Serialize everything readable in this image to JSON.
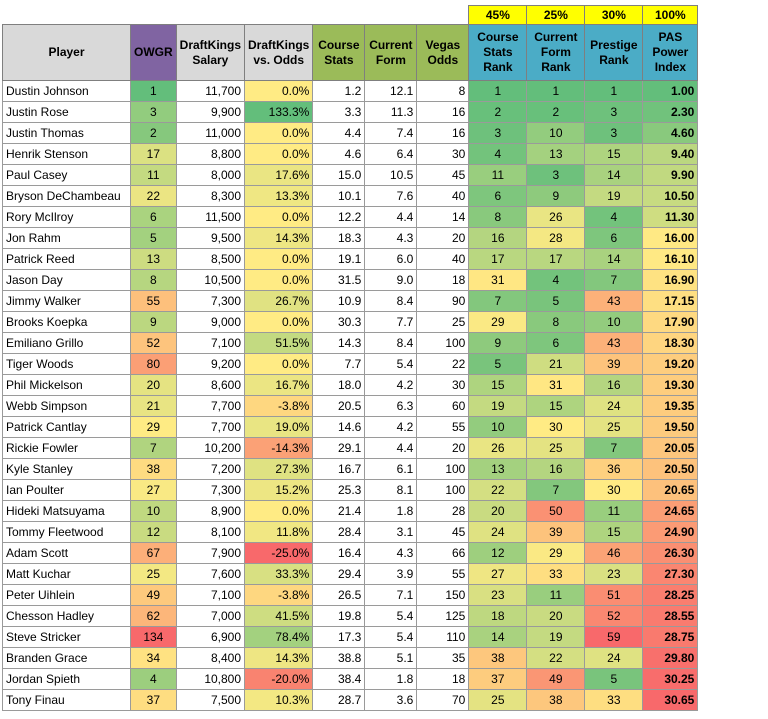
{
  "weights": [
    "45%",
    "25%",
    "30%",
    "100%"
  ],
  "headers": {
    "player": "Player",
    "owgr": "OWGR",
    "salary": "DraftKings Salary",
    "vs_odds": "DraftKings vs. Odds",
    "course_stats": "Course Stats",
    "current_form": "Current Form",
    "vegas_odds": "Vegas Odds",
    "course_rank": "Course Stats Rank",
    "form_rank": "Current Form Rank",
    "prestige_rank": "Prestige Rank",
    "pas": "PAS Power Index"
  },
  "rows": [
    {
      "player": "Dustin Johnson",
      "owgr": "1",
      "salary": "11,700",
      "vs_odds": "0.0%",
      "course_stats": "1.2",
      "current_form": "12.1",
      "vegas_odds": "8",
      "course_rank": "1",
      "form_rank": "1",
      "prestige_rank": "1",
      "pas": "1.00"
    },
    {
      "player": "Justin Rose",
      "owgr": "3",
      "salary": "9,900",
      "vs_odds": "133.3%",
      "course_stats": "3.3",
      "current_form": "11.3",
      "vegas_odds": "16",
      "course_rank": "2",
      "form_rank": "2",
      "prestige_rank": "3",
      "pas": "2.30"
    },
    {
      "player": "Justin Thomas",
      "owgr": "2",
      "salary": "11,000",
      "vs_odds": "0.0%",
      "course_stats": "4.4",
      "current_form": "7.4",
      "vegas_odds": "16",
      "course_rank": "3",
      "form_rank": "10",
      "prestige_rank": "3",
      "pas": "4.60"
    },
    {
      "player": "Henrik Stenson",
      "owgr": "17",
      "salary": "8,800",
      "vs_odds": "0.0%",
      "course_stats": "4.6",
      "current_form": "6.4",
      "vegas_odds": "30",
      "course_rank": "4",
      "form_rank": "13",
      "prestige_rank": "15",
      "pas": "9.40"
    },
    {
      "player": "Paul Casey",
      "owgr": "11",
      "salary": "8,000",
      "vs_odds": "17.6%",
      "course_stats": "15.0",
      "current_form": "10.5",
      "vegas_odds": "45",
      "course_rank": "11",
      "form_rank": "3",
      "prestige_rank": "14",
      "pas": "9.90"
    },
    {
      "player": "Bryson DeChambeau",
      "owgr": "22",
      "salary": "8,300",
      "vs_odds": "13.3%",
      "course_stats": "10.1",
      "current_form": "7.6",
      "vegas_odds": "40",
      "course_rank": "6",
      "form_rank": "9",
      "prestige_rank": "19",
      "pas": "10.50"
    },
    {
      "player": "Rory McIlroy",
      "owgr": "6",
      "salary": "11,500",
      "vs_odds": "0.0%",
      "course_stats": "12.2",
      "current_form": "4.4",
      "vegas_odds": "14",
      "course_rank": "8",
      "form_rank": "26",
      "prestige_rank": "4",
      "pas": "11.30"
    },
    {
      "player": "Jon Rahm",
      "owgr": "5",
      "salary": "9,500",
      "vs_odds": "14.3%",
      "course_stats": "18.3",
      "current_form": "4.3",
      "vegas_odds": "20",
      "course_rank": "16",
      "form_rank": "28",
      "prestige_rank": "6",
      "pas": "16.00"
    },
    {
      "player": "Patrick Reed",
      "owgr": "13",
      "salary": "8,500",
      "vs_odds": "0.0%",
      "course_stats": "19.1",
      "current_form": "6.0",
      "vegas_odds": "40",
      "course_rank": "17",
      "form_rank": "17",
      "prestige_rank": "14",
      "pas": "16.10"
    },
    {
      "player": "Jason Day",
      "owgr": "8",
      "salary": "10,500",
      "vs_odds": "0.0%",
      "course_stats": "31.5",
      "current_form": "9.0",
      "vegas_odds": "18",
      "course_rank": "31",
      "form_rank": "4",
      "prestige_rank": "7",
      "pas": "16.90"
    },
    {
      "player": "Jimmy Walker",
      "owgr": "55",
      "salary": "7,300",
      "vs_odds": "26.7%",
      "course_stats": "10.9",
      "current_form": "8.4",
      "vegas_odds": "90",
      "course_rank": "7",
      "form_rank": "5",
      "prestige_rank": "43",
      "pas": "17.15"
    },
    {
      "player": "Brooks Koepka",
      "owgr": "9",
      "salary": "9,000",
      "vs_odds": "0.0%",
      "course_stats": "30.3",
      "current_form": "7.7",
      "vegas_odds": "25",
      "course_rank": "29",
      "form_rank": "8",
      "prestige_rank": "10",
      "pas": "17.90"
    },
    {
      "player": "Emiliano Grillo",
      "owgr": "52",
      "salary": "7,100",
      "vs_odds": "51.5%",
      "course_stats": "14.3",
      "current_form": "8.4",
      "vegas_odds": "100",
      "course_rank": "9",
      "form_rank": "6",
      "prestige_rank": "43",
      "pas": "18.30"
    },
    {
      "player": "Tiger Woods",
      "owgr": "80",
      "salary": "9,200",
      "vs_odds": "0.0%",
      "course_stats": "7.7",
      "current_form": "5.4",
      "vegas_odds": "22",
      "course_rank": "5",
      "form_rank": "21",
      "prestige_rank": "39",
      "pas": "19.20"
    },
    {
      "player": "Phil Mickelson",
      "owgr": "20",
      "salary": "8,600",
      "vs_odds": "16.7%",
      "course_stats": "18.0",
      "current_form": "4.2",
      "vegas_odds": "30",
      "course_rank": "15",
      "form_rank": "31",
      "prestige_rank": "16",
      "pas": "19.30"
    },
    {
      "player": "Webb Simpson",
      "owgr": "21",
      "salary": "7,700",
      "vs_odds": "-3.8%",
      "course_stats": "20.5",
      "current_form": "6.3",
      "vegas_odds": "60",
      "course_rank": "19",
      "form_rank": "15",
      "prestige_rank": "24",
      "pas": "19.35"
    },
    {
      "player": "Patrick Cantlay",
      "owgr": "29",
      "salary": "7,700",
      "vs_odds": "19.0%",
      "course_stats": "14.6",
      "current_form": "4.2",
      "vegas_odds": "55",
      "course_rank": "10",
      "form_rank": "30",
      "prestige_rank": "25",
      "pas": "19.50"
    },
    {
      "player": "Rickie Fowler",
      "owgr": "7",
      "salary": "10,200",
      "vs_odds": "-14.3%",
      "course_stats": "29.1",
      "current_form": "4.4",
      "vegas_odds": "20",
      "course_rank": "26",
      "form_rank": "25",
      "prestige_rank": "7",
      "pas": "20.05"
    },
    {
      "player": "Kyle Stanley",
      "owgr": "38",
      "salary": "7,200",
      "vs_odds": "27.3%",
      "course_stats": "16.7",
      "current_form": "6.1",
      "vegas_odds": "100",
      "course_rank": "13",
      "form_rank": "16",
      "prestige_rank": "36",
      "pas": "20.50"
    },
    {
      "player": "Ian Poulter",
      "owgr": "27",
      "salary": "7,300",
      "vs_odds": "15.2%",
      "course_stats": "25.3",
      "current_form": "8.1",
      "vegas_odds": "100",
      "course_rank": "22",
      "form_rank": "7",
      "prestige_rank": "30",
      "pas": "20.65"
    },
    {
      "player": "Hideki Matsuyama",
      "owgr": "10",
      "salary": "8,900",
      "vs_odds": "0.0%",
      "course_stats": "21.4",
      "current_form": "1.8",
      "vegas_odds": "28",
      "course_rank": "20",
      "form_rank": "50",
      "prestige_rank": "11",
      "pas": "24.65"
    },
    {
      "player": "Tommy Fleetwood",
      "owgr": "12",
      "salary": "8,100",
      "vs_odds": "11.8%",
      "course_stats": "28.4",
      "current_form": "3.1",
      "vegas_odds": "45",
      "course_rank": "24",
      "form_rank": "39",
      "prestige_rank": "15",
      "pas": "24.90"
    },
    {
      "player": "Adam Scott",
      "owgr": "67",
      "salary": "7,900",
      "vs_odds": "-25.0%",
      "course_stats": "16.4",
      "current_form": "4.3",
      "vegas_odds": "66",
      "course_rank": "12",
      "form_rank": "29",
      "prestige_rank": "46",
      "pas": "26.30"
    },
    {
      "player": "Matt Kuchar",
      "owgr": "25",
      "salary": "7,600",
      "vs_odds": "33.3%",
      "course_stats": "29.4",
      "current_form": "3.9",
      "vegas_odds": "55",
      "course_rank": "27",
      "form_rank": "33",
      "prestige_rank": "23",
      "pas": "27.30"
    },
    {
      "player": "Peter Uihlein",
      "owgr": "49",
      "salary": "7,100",
      "vs_odds": "-3.8%",
      "course_stats": "26.5",
      "current_form": "7.1",
      "vegas_odds": "150",
      "course_rank": "23",
      "form_rank": "11",
      "prestige_rank": "51",
      "pas": "28.25"
    },
    {
      "player": "Chesson Hadley",
      "owgr": "62",
      "salary": "7,000",
      "vs_odds": "41.5%",
      "course_stats": "19.8",
      "current_form": "5.4",
      "vegas_odds": "125",
      "course_rank": "18",
      "form_rank": "20",
      "prestige_rank": "52",
      "pas": "28.55"
    },
    {
      "player": "Steve Stricker",
      "owgr": "134",
      "salary": "6,900",
      "vs_odds": "78.4%",
      "course_stats": "17.3",
      "current_form": "5.4",
      "vegas_odds": "110",
      "course_rank": "14",
      "form_rank": "19",
      "prestige_rank": "59",
      "pas": "28.75"
    },
    {
      "player": "Branden Grace",
      "owgr": "34",
      "salary": "8,400",
      "vs_odds": "14.3%",
      "course_stats": "38.8",
      "current_form": "5.1",
      "vegas_odds": "35",
      "course_rank": "38",
      "form_rank": "22",
      "prestige_rank": "24",
      "pas": "29.80"
    },
    {
      "player": "Jordan Spieth",
      "owgr": "4",
      "salary": "10,800",
      "vs_odds": "-20.0%",
      "course_stats": "38.4",
      "current_form": "1.8",
      "vegas_odds": "18",
      "course_rank": "37",
      "form_rank": "49",
      "prestige_rank": "5",
      "pas": "30.25"
    },
    {
      "player": "Tony Finau",
      "owgr": "37",
      "salary": "7,500",
      "vs_odds": "10.3%",
      "course_stats": "28.7",
      "current_form": "3.6",
      "vegas_odds": "70",
      "course_rank": "25",
      "form_rank": "38",
      "prestige_rank": "33",
      "pas": "30.65"
    }
  ],
  "colors": {
    "header_gray": "#d9d9d9",
    "header_purple": "#8064a2",
    "header_green": "#9bbb59",
    "header_teal": "#4bacc6",
    "weight_yellow": "#ffff00",
    "scale_good": "#63be7b",
    "scale_mid": "#ffeb84",
    "scale_bad": "#f8696b"
  }
}
